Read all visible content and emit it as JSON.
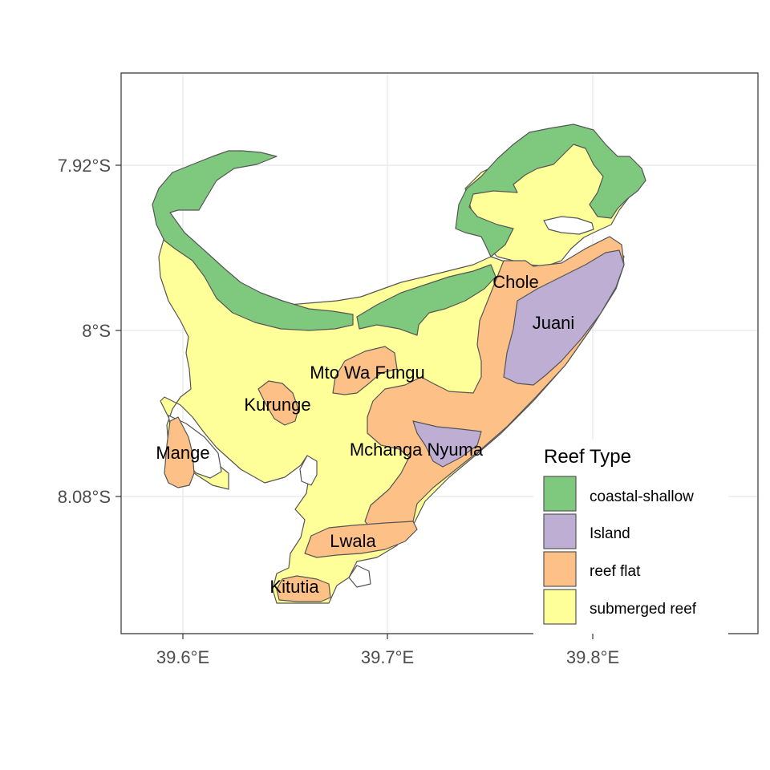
{
  "map": {
    "x_ticks": [
      "39.6°E",
      "39.7°E",
      "39.8°E"
    ],
    "y_ticks": [
      "7.92°S",
      "8°S",
      "8.08°S"
    ],
    "place_labels": [
      "Chole",
      "Juani",
      "Mto Wa Fungu",
      "Kurunge",
      "Mange",
      "Mchanga Nyuma",
      "Lwala",
      "Kitutia"
    ]
  },
  "legend": {
    "title": "Reef Type",
    "items": [
      {
        "label": "coastal-shallow",
        "color": "#7fc97f"
      },
      {
        "label": "Island",
        "color": "#beaed4"
      },
      {
        "label": "reef flat",
        "color": "#fdc086"
      },
      {
        "label": "submerged reef",
        "color": "#ffff99"
      }
    ]
  },
  "colors": {
    "coastal_shallow": "#7fc97f",
    "island": "#beaed4",
    "reef_flat": "#fdc086",
    "submerged_reef": "#ffff99",
    "grid": "#ebebeb",
    "panel_border": "#333333"
  }
}
